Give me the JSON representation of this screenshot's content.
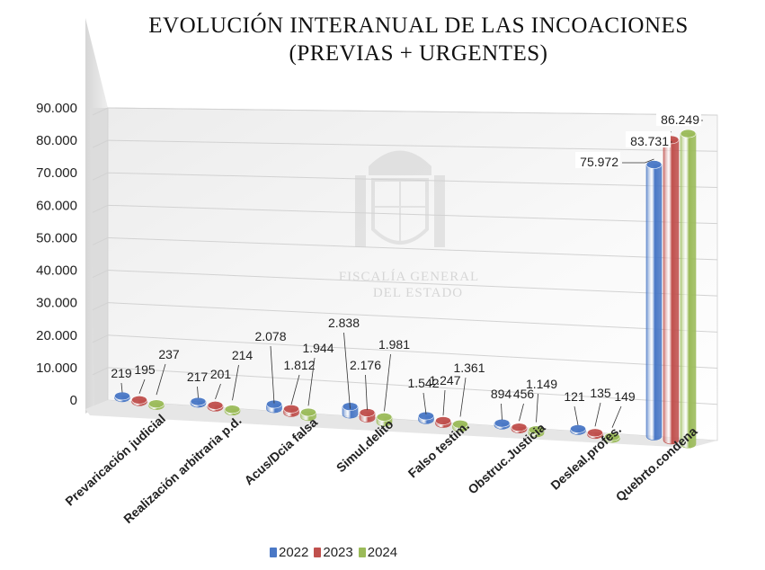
{
  "title": {
    "line1": "EVOLUCIÓN INTERANUAL DE LAS INCOACIONES",
    "line2": "(PREVIAS + URGENTES)"
  },
  "watermark": {
    "line1": "FISCALÍA GENERAL",
    "line2": "DEL ESTADO"
  },
  "chart_data": {
    "type": "bar",
    "style": "3d-cylinder",
    "categories": [
      "Prevaricación judicial",
      "Realización arbitraria p.d.",
      "Acus/Dcia falsa",
      "Simul.delito",
      "Falso testim.",
      "Obstruc.Justicia",
      "Desleal.profes.",
      "Quebrto.condena"
    ],
    "series": [
      {
        "name": "2022",
        "color": "#4a78c6",
        "values": [
          219,
          217,
          2078,
          2838,
          1542,
          894,
          121,
          75972
        ],
        "labels": [
          "219",
          "217",
          "2.078",
          "2.838",
          "1.542",
          "894",
          "121",
          "75.972"
        ]
      },
      {
        "name": "2023",
        "color": "#c0504d",
        "values": [
          195,
          201,
          1812,
          2176,
          1247,
          456,
          135,
          83731
        ],
        "labels": [
          "195",
          "201",
          "1.812",
          "2.176",
          "1.247",
          "456",
          "135",
          "83.731"
        ]
      },
      {
        "name": "2024",
        "color": "#9bbb59",
        "values": [
          237,
          214,
          1944,
          1981,
          1361,
          1149,
          149,
          86249
        ],
        "labels": [
          "237",
          "214",
          "1.944",
          "1.981",
          "1.361",
          "1.149",
          "149",
          "86.249"
        ]
      }
    ],
    "y_ticks": [
      "0",
      "10.000",
      "20.000",
      "30.000",
      "40.000",
      "50.000",
      "60.000",
      "70.000",
      "80.000",
      "90.000"
    ],
    "ylim": [
      0,
      90000
    ],
    "xlabel": "",
    "ylabel": "",
    "grid": true,
    "legend_position": "bottom"
  }
}
